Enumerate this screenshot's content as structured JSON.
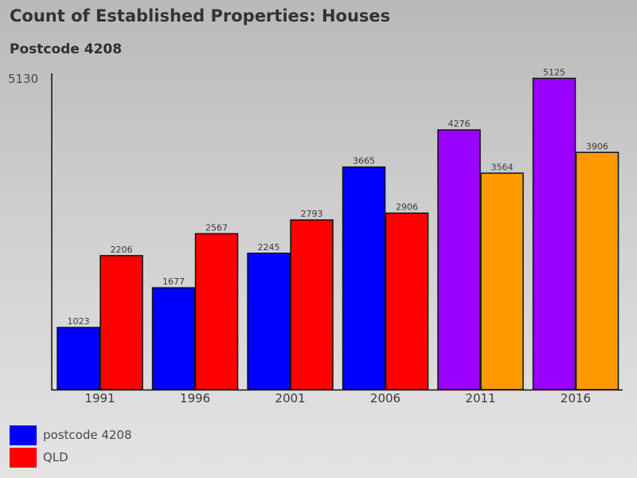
{
  "title": "Count of Established Properties: Houses",
  "subtitle": "Postcode 4208",
  "colors": {
    "postcode": "#0000ff",
    "qld": "#ff0000",
    "postcode_highlight": "#9900ff",
    "qld_highlight": "#ff9900"
  },
  "chart_data": {
    "type": "bar",
    "title": "Count of Established Properties: Houses",
    "subtitle": "Postcode 4208",
    "categories": [
      "1991",
      "1996",
      "2001",
      "2006",
      "2011",
      "2016"
    ],
    "series": [
      {
        "name": "postcode 4208",
        "values": [
          1023,
          1677,
          2245,
          3665,
          4276,
          5125
        ]
      },
      {
        "name": "QLD",
        "values": [
          2206,
          2567,
          2793,
          2906,
          3564,
          3906
        ]
      }
    ],
    "bar_colors": [
      [
        "#0000ff",
        "#0000ff",
        "#0000ff",
        "#0000ff",
        "#9900ff",
        "#9900ff"
      ],
      [
        "#ff0000",
        "#ff0000",
        "#ff0000",
        "#ff0000",
        "#ff9900",
        "#ff9900"
      ]
    ],
    "ylim": [
      0,
      5130
    ],
    "y_max_label": "5130",
    "xlabel": "",
    "ylabel": "",
    "grid": false,
    "legend_position": "bottom-left"
  },
  "legend": [
    {
      "label": "postcode 4208",
      "color": "#0000ff"
    },
    {
      "label": "QLD",
      "color": "#ff0000"
    }
  ]
}
